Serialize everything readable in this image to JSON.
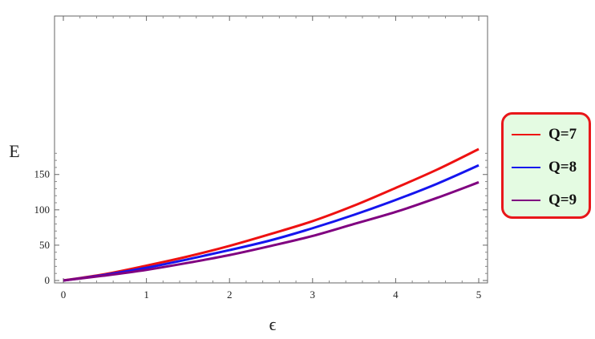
{
  "chart_data": {
    "type": "line",
    "xlabel": "ϵ",
    "ylabel": "E",
    "xlim": [
      0,
      5
    ],
    "ylim": [
      0,
      187
    ],
    "x_ticks": [
      0,
      1,
      2,
      3,
      4,
      5
    ],
    "y_ticks": [
      0,
      50,
      100,
      150
    ],
    "grid": false,
    "legend_position": "right",
    "legend_style": {
      "border_color": "#e8171a",
      "background": "#e4fbe2"
    },
    "series": [
      {
        "name": "Q=7",
        "color": "#ee1111",
        "x": [
          0,
          0.5,
          1,
          1.5,
          2,
          2.5,
          3,
          3.5,
          4,
          4.5,
          5
        ],
        "y": [
          0,
          9,
          21,
          34,
          49,
          66,
          84,
          106,
          131,
          157,
          186
        ]
      },
      {
        "name": "Q=8",
        "color": "#1515ee",
        "x": [
          0,
          0.5,
          1,
          1.5,
          2,
          2.5,
          3,
          3.5,
          4,
          4.5,
          5
        ],
        "y": [
          0,
          8,
          18,
          30,
          43,
          57,
          74,
          93,
          114,
          137,
          163
        ]
      },
      {
        "name": "Q=9",
        "color": "#800080",
        "x": [
          0,
          0.5,
          1,
          1.5,
          2,
          2.5,
          3,
          3.5,
          4,
          4.5,
          5
        ],
        "y": [
          0,
          7,
          15,
          25,
          36,
          49,
          63,
          80,
          97,
          117,
          139
        ]
      }
    ]
  }
}
